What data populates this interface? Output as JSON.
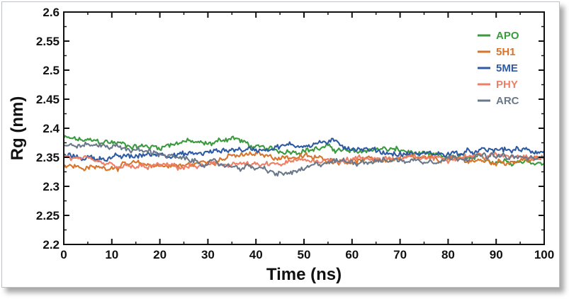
{
  "chart_data": {
    "type": "line",
    "title": "",
    "xlabel": "Time (ns)",
    "ylabel": "Rg (nm)",
    "xlim": [
      0,
      100
    ],
    "ylim": [
      2.2,
      2.6
    ],
    "x_ticks": [
      "0",
      "10",
      "20",
      "30",
      "40",
      "50",
      "60",
      "70",
      "80",
      "90",
      "100"
    ],
    "y_ticks": [
      "2.2",
      "2.25",
      "2.3",
      "2.35",
      "2.4",
      "2.45",
      "2.5",
      "2.55",
      "2.6"
    ],
    "grid": false,
    "legend_position": "top-right",
    "x": [
      0,
      5,
      10,
      15,
      20,
      25,
      30,
      35,
      40,
      45,
      50,
      55,
      60,
      65,
      70,
      75,
      80,
      85,
      90,
      95,
      100
    ],
    "series": [
      {
        "name": "APO",
        "color": "#3a9a3e",
        "values": [
          2.383,
          2.378,
          2.376,
          2.369,
          2.368,
          2.378,
          2.372,
          2.385,
          2.366,
          2.361,
          2.362,
          2.367,
          2.358,
          2.365,
          2.362,
          2.353,
          2.351,
          2.348,
          2.344,
          2.344,
          2.341
        ]
      },
      {
        "name": "5H1",
        "color": "#d6752c",
        "values": [
          2.337,
          2.331,
          2.334,
          2.338,
          2.336,
          2.335,
          2.343,
          2.351,
          2.355,
          2.35,
          2.351,
          2.346,
          2.344,
          2.345,
          2.348,
          2.347,
          2.346,
          2.345,
          2.341,
          2.345,
          2.348
        ]
      },
      {
        "name": "5ME",
        "color": "#2d5aa2",
        "values": [
          2.352,
          2.349,
          2.349,
          2.352,
          2.357,
          2.354,
          2.358,
          2.364,
          2.363,
          2.369,
          2.371,
          2.377,
          2.367,
          2.361,
          2.355,
          2.356,
          2.356,
          2.358,
          2.363,
          2.362,
          2.36
        ]
      },
      {
        "name": "PHY",
        "color": "#ef7e66",
        "values": [
          2.351,
          2.343,
          2.335,
          2.332,
          2.336,
          2.333,
          2.335,
          2.34,
          2.335,
          2.338,
          2.345,
          2.345,
          2.347,
          2.349,
          2.347,
          2.349,
          2.35,
          2.353,
          2.352,
          2.354,
          2.351
        ]
      },
      {
        "name": "ARC",
        "color": "#6b7889",
        "values": [
          2.369,
          2.371,
          2.37,
          2.362,
          2.357,
          2.345,
          2.34,
          2.335,
          2.332,
          2.32,
          2.328,
          2.343,
          2.343,
          2.344,
          2.345,
          2.344,
          2.348,
          2.352,
          2.351,
          2.349,
          2.347
        ]
      }
    ]
  }
}
